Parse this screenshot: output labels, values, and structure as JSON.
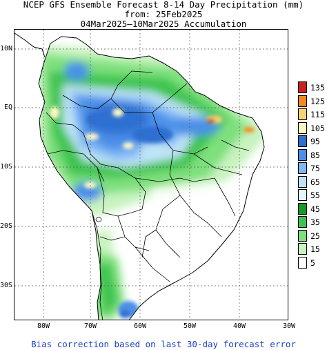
{
  "title": {
    "line1": "NCEP GFS Ensemble Forecast 8-14 Day Precipitation (mm)",
    "line2": "from: 25Feb2025",
    "line3": "04Mar2025—10Mar2025 Accumulation"
  },
  "axes": {
    "lat_labels": [
      "10N",
      "EQ",
      "10S",
      "20S",
      "30S"
    ],
    "lon_labels": [
      "80W",
      "70W",
      "60W",
      "50W",
      "40W",
      "30W"
    ]
  },
  "legend": {
    "entries": [
      {
        "label": "135",
        "color": "#cc1f1f"
      },
      {
        "label": "125",
        "color": "#f28a1d"
      },
      {
        "label": "115",
        "color": "#f7d56e"
      },
      {
        "label": "105",
        "color": "#fff8c4"
      },
      {
        "label": "95",
        "color": "#2e6fd1"
      },
      {
        "label": "85",
        "color": "#4c8fe8"
      },
      {
        "label": "75",
        "color": "#7fb7f5"
      },
      {
        "label": "65",
        "color": "#bfe4f7"
      },
      {
        "label": "55",
        "color": "#e2f6fa"
      },
      {
        "label": "45",
        "color": "#159a25"
      },
      {
        "label": "35",
        "color": "#3cc450"
      },
      {
        "label": "25",
        "color": "#7ee07d"
      },
      {
        "label": "15",
        "color": "#c8f3c0"
      },
      {
        "label": "5",
        "color": "#ffffff"
      }
    ]
  },
  "footer": "Bias correction based on last 30-day forecast error"
}
